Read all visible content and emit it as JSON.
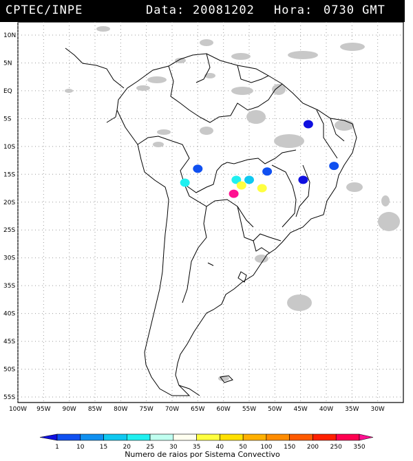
{
  "header": {
    "agency": "CPTEC/INPE",
    "date_label": "Data:",
    "date": "20081202",
    "time_label": "Hora:",
    "time": "0730 GMT"
  },
  "map": {
    "lat_labels": [
      "10N",
      "5N",
      "EQ",
      "5S",
      "10S",
      "15S",
      "20S",
      "25S",
      "30S",
      "35S",
      "40S",
      "45S",
      "50S",
      "55S"
    ],
    "lon_labels": [
      "100W",
      "95W",
      "90W",
      "85W",
      "80W",
      "75W",
      "70W",
      "65W",
      "60W",
      "55W",
      "50W",
      "45W",
      "40W",
      "35W",
      "30W"
    ],
    "cloud_color": "#c0c0c0",
    "border_color": "#000000"
  },
  "legend": {
    "ticks": [
      "1",
      "10",
      "15",
      "20",
      "25",
      "30",
      "35",
      "40",
      "50",
      "100",
      "150",
      "200",
      "250",
      "350"
    ],
    "colors": [
      "#1010e0",
      "#1050f0",
      "#1090f0",
      "#10c8f0",
      "#20f0f0",
      "#c0fff0",
      "#fffff0",
      "#ffff40",
      "#ffe000",
      "#ffb000",
      "#ff8c00",
      "#ff5a00",
      "#ff2000",
      "#ff0050",
      "#ff1090"
    ],
    "caption": "Numero de raios por Sistema Convectivo"
  },
  "storm_cells": [
    {
      "lon": -43.5,
      "lat": -6.0,
      "color": "#1010e0"
    },
    {
      "lon": -38.5,
      "lat": -13.5,
      "color": "#1050f0"
    },
    {
      "lon": -44.5,
      "lat": -16.0,
      "color": "#1010e0"
    },
    {
      "lon": -51.5,
      "lat": -14.5,
      "color": "#1050f0"
    },
    {
      "lon": -65.0,
      "lat": -14.0,
      "color": "#1050f0"
    },
    {
      "lon": -67.5,
      "lat": -16.5,
      "color": "#20f0f0"
    },
    {
      "lon": -57.5,
      "lat": -16.0,
      "color": "#20f0f0"
    },
    {
      "lon": -55.0,
      "lat": -16.0,
      "color": "#10c8f0"
    },
    {
      "lon": -56.5,
      "lat": -17.0,
      "color": "#ffff40"
    },
    {
      "lon": -52.5,
      "lat": -17.5,
      "color": "#ffff40"
    },
    {
      "lon": -58.0,
      "lat": -18.5,
      "color": "#ff1090"
    }
  ]
}
